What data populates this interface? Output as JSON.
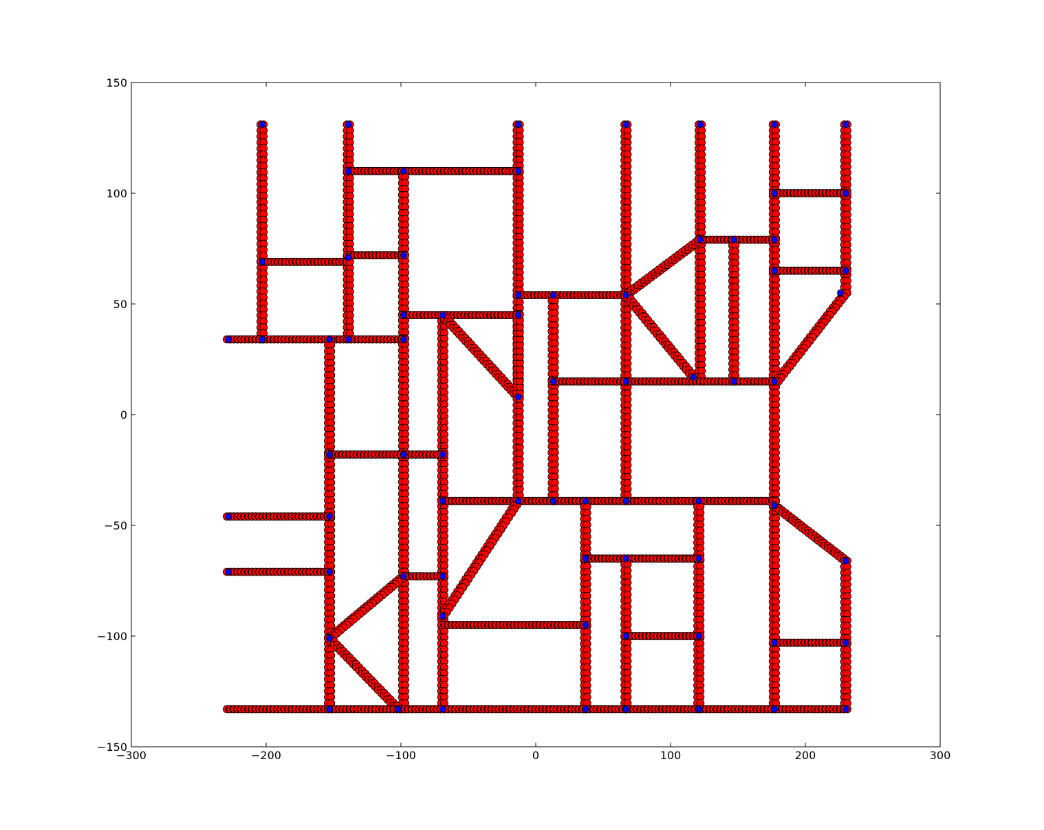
{
  "chart_data": {
    "type": "scatter",
    "title": "",
    "xlabel": "",
    "ylabel": "",
    "xlim": [
      -300,
      300
    ],
    "ylim": [
      -150,
      150
    ],
    "x_ticks": [
      -300,
      -200,
      -100,
      0,
      100,
      200,
      300
    ],
    "y_ticks": [
      -150,
      -100,
      -50,
      0,
      50,
      100,
      150
    ],
    "x_tick_labels": [
      "−300",
      "−200",
      "−100",
      "0",
      "100",
      "200",
      "300"
    ],
    "y_tick_labels": [
      "−150",
      "−100",
      "−50",
      "0",
      "50",
      "100",
      "150"
    ],
    "grid": false,
    "legend": "none",
    "colors": {
      "path_points": "#ff0000",
      "path_edge": "#000000",
      "nodes": "#0000ff"
    },
    "road_segments": [
      [
        [
          -203,
          131
        ],
        [
          -203,
          34
        ]
      ],
      [
        [
          -139,
          131
        ],
        [
          -139,
          34
        ]
      ],
      [
        [
          -13,
          131
        ],
        [
          -13,
          8
        ]
      ],
      [
        [
          67,
          131
        ],
        [
          67,
          -39
        ]
      ],
      [
        [
          122,
          131
        ],
        [
          122,
          17
        ]
      ],
      [
        [
          177,
          131
        ],
        [
          177,
          -133
        ]
      ],
      [
        [
          230,
          131
        ],
        [
          230,
          55
        ]
      ],
      [
        [
          -139,
          110
        ],
        [
          -13,
          110
        ]
      ],
      [
        [
          -98,
          110
        ],
        [
          -98,
          -133
        ]
      ],
      [
        [
          177,
          100
        ],
        [
          230,
          100
        ]
      ],
      [
        [
          -203,
          69
        ],
        [
          -139,
          69
        ]
      ],
      [
        [
          -139,
          72
        ],
        [
          -98,
          72
        ]
      ],
      [
        [
          122,
          79
        ],
        [
          177,
          79
        ]
      ],
      [
        [
          147,
          79
        ],
        [
          147,
          15
        ]
      ],
      [
        [
          177,
          65
        ],
        [
          230,
          65
        ]
      ],
      [
        [
          -13,
          54
        ],
        [
          67,
          54
        ]
      ],
      [
        [
          67,
          54
        ],
        [
          122,
          79
        ]
      ],
      [
        [
          67,
          54
        ],
        [
          117,
          17
        ]
      ],
      [
        [
          230,
          55
        ],
        [
          179,
          15
        ]
      ],
      [
        [
          -98,
          45
        ],
        [
          -13,
          45
        ]
      ],
      [
        [
          -69,
          45
        ],
        [
          -69,
          -133
        ]
      ],
      [
        [
          -69,
          45
        ],
        [
          -13,
          8
        ]
      ],
      [
        [
          -228,
          34
        ],
        [
          -98,
          34
        ]
      ],
      [
        [
          -153,
          34
        ],
        [
          -153,
          -133
        ]
      ],
      [
        [
          13,
          54
        ],
        [
          13,
          -39
        ]
      ],
      [
        [
          13,
          15
        ],
        [
          177,
          15
        ]
      ],
      [
        [
          -153,
          -18
        ],
        [
          -69,
          -18
        ]
      ],
      [
        [
          -69,
          -39
        ],
        [
          177,
          -39
        ]
      ],
      [
        [
          -13,
          -39
        ],
        [
          -13,
          45
        ]
      ],
      [
        [
          -13,
          -39
        ],
        [
          -69,
          -91
        ]
      ],
      [
        [
          37,
          -39
        ],
        [
          37,
          -133
        ]
      ],
      [
        [
          121,
          -39
        ],
        [
          121,
          -133
        ]
      ],
      [
        [
          177,
          -41
        ],
        [
          230,
          -66
        ]
      ],
      [
        [
          -228,
          -46
        ],
        [
          -153,
          -46
        ]
      ],
      [
        [
          37,
          -65
        ],
        [
          121,
          -65
        ]
      ],
      [
        [
          67,
          -65
        ],
        [
          67,
          -133
        ]
      ],
      [
        [
          -228,
          -71
        ],
        [
          -153,
          -71
        ]
      ],
      [
        [
          -98,
          -73
        ],
        [
          -69,
          -73
        ]
      ],
      [
        [
          -98,
          -73
        ],
        [
          -153,
          -101
        ]
      ],
      [
        [
          230,
          -66
        ],
        [
          230,
          -133
        ]
      ],
      [
        [
          -69,
          -95
        ],
        [
          37,
          -95
        ]
      ],
      [
        [
          67,
          -100
        ],
        [
          121,
          -100
        ]
      ],
      [
        [
          177,
          -103
        ],
        [
          230,
          -103
        ]
      ],
      [
        [
          -153,
          -101
        ],
        [
          -102,
          -133
        ]
      ],
      [
        [
          -228,
          -133
        ],
        [
          230,
          -133
        ]
      ]
    ],
    "path_point_spacing": 2.7,
    "nodes": [
      [
        -203,
        131
      ],
      [
        -139,
        131
      ],
      [
        -13,
        131
      ],
      [
        67,
        131
      ],
      [
        122,
        131
      ],
      [
        177,
        131
      ],
      [
        230,
        131
      ],
      [
        -139,
        110
      ],
      [
        -98,
        110
      ],
      [
        -13,
        110
      ],
      [
        177,
        100
      ],
      [
        230,
        100
      ],
      [
        122,
        79
      ],
      [
        147,
        79
      ],
      [
        177,
        79
      ],
      [
        -203,
        69
      ],
      [
        -139,
        71
      ],
      [
        -98,
        72
      ],
      [
        177,
        65
      ],
      [
        230,
        65
      ],
      [
        -13,
        54
      ],
      [
        13,
        54
      ],
      [
        67,
        54
      ],
      [
        226,
        55
      ],
      [
        -98,
        45
      ],
      [
        -69,
        45
      ],
      [
        -13,
        45
      ],
      [
        -228,
        34
      ],
      [
        -203,
        34
      ],
      [
        -153,
        34
      ],
      [
        -139,
        34
      ],
      [
        -98,
        34
      ],
      [
        117,
        17
      ],
      [
        13,
        15
      ],
      [
        67,
        15
      ],
      [
        147,
        15
      ],
      [
        177,
        15
      ],
      [
        -13,
        8
      ],
      [
        -153,
        -18
      ],
      [
        -98,
        -18
      ],
      [
        -69,
        -18
      ],
      [
        -69,
        -39
      ],
      [
        -13,
        -39
      ],
      [
        13,
        -39
      ],
      [
        37,
        -39
      ],
      [
        67,
        -39
      ],
      [
        121,
        -39
      ],
      [
        177,
        -41
      ],
      [
        -228,
        -46
      ],
      [
        -153,
        -46
      ],
      [
        37,
        -65
      ],
      [
        67,
        -65
      ],
      [
        121,
        -65
      ],
      [
        230,
        -66
      ],
      [
        -228,
        -71
      ],
      [
        -153,
        -71
      ],
      [
        -98,
        -73
      ],
      [
        -69,
        -73
      ],
      [
        -69,
        -91
      ],
      [
        37,
        -95
      ],
      [
        67,
        -100
      ],
      [
        121,
        -100
      ],
      [
        -153,
        -101
      ],
      [
        177,
        -103
      ],
      [
        230,
        -103
      ],
      [
        -153,
        -133
      ],
      [
        -102,
        -133
      ],
      [
        -69,
        -133
      ],
      [
        37,
        -133
      ],
      [
        67,
        -133
      ],
      [
        121,
        -133
      ],
      [
        177,
        -133
      ],
      [
        230,
        -133
      ]
    ]
  }
}
